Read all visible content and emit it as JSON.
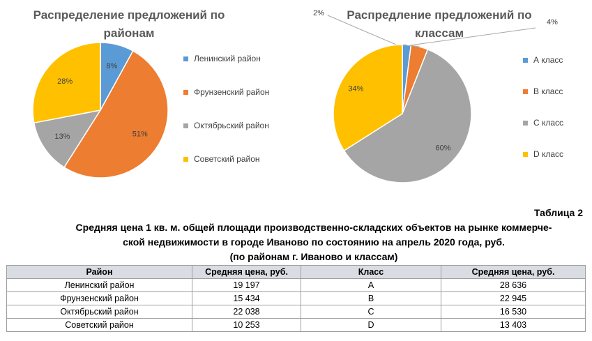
{
  "chart_data": [
    {
      "type": "pie",
      "title": "Распределение предложений по районам",
      "categories": [
        "Ленинский район",
        "Фрунзенский район",
        "Октябрьский район",
        "Советский район"
      ],
      "values": [
        8,
        51,
        13,
        28
      ],
      "labels": [
        "8%",
        "51%",
        "13%",
        "28%"
      ],
      "colors": [
        "#5b9bd5",
        "#ed7d31",
        "#a5a5a5",
        "#ffc000"
      ],
      "legend_position": "right"
    },
    {
      "type": "pie",
      "title": "Распредление предложений по классам",
      "categories": [
        "А класс",
        "В класс",
        "С класс",
        "D класс"
      ],
      "values": [
        2,
        4,
        60,
        34
      ],
      "labels": [
        "2%",
        "4%",
        "60%",
        "34%"
      ],
      "colors": [
        "#5b9bd5",
        "#ed7d31",
        "#a5a5a5",
        "#ffc000"
      ],
      "legend_position": "right"
    }
  ],
  "table": {
    "label": "Таблица 2",
    "caption_lines": [
      "Средняя цена 1 кв. м. общей площади производственно-складских объектов на рынке коммерче-",
      "ской недвижимости в городе Иваново по состоянию на апрель 2020 года, руб.",
      "(по районам г. Иваново и классам)"
    ],
    "headers": [
      "Район",
      "Средняя цена, руб.",
      "Класс",
      "Средняя цена, руб."
    ],
    "rows": [
      [
        "Ленинский район",
        "19 197",
        "А",
        "28 636"
      ],
      [
        "Фрунзенский район",
        "15 434",
        "В",
        "22 945"
      ],
      [
        "Октябрьский район",
        "22 038",
        "С",
        "16 530"
      ],
      [
        "Советский район",
        "10 253",
        "D",
        "13 403"
      ]
    ]
  }
}
